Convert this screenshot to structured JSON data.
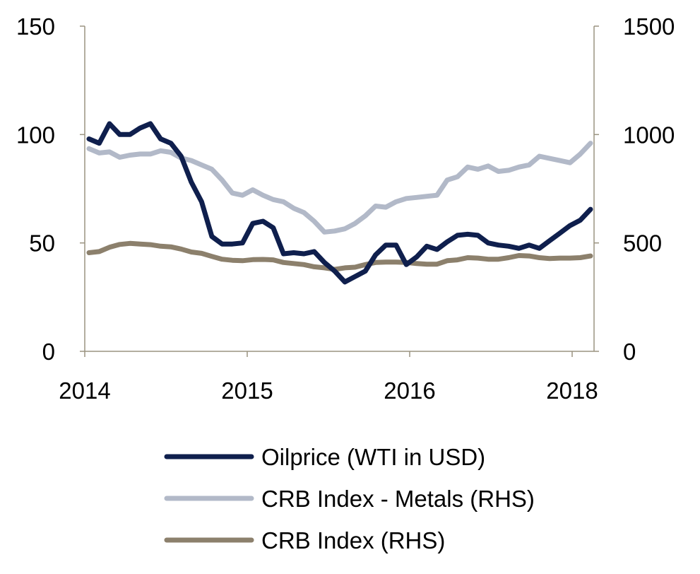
{
  "chart_data": {
    "type": "line",
    "title": "",
    "xlabel": "",
    "ylabel": "",
    "x_ticks": [
      "2014",
      "2015",
      "2016",
      "2018"
    ],
    "y_left": {
      "ticks": [
        "0",
        "50",
        "100",
        "150"
      ],
      "range": [
        0,
        150
      ]
    },
    "y_right": {
      "ticks": [
        "0",
        "500",
        "1000",
        "1500"
      ],
      "range": [
        0,
        1500
      ]
    },
    "grid": false,
    "legend": "bottom",
    "series": [
      {
        "name": "Oilprice (WTI in USD)",
        "axis": "left",
        "color": "#0f1f4d",
        "values": [
          98,
          96,
          105,
          100,
          100,
          103,
          105,
          98,
          96,
          90,
          78,
          69,
          53,
          49.5,
          49.5,
          50,
          59,
          60,
          57,
          45,
          45.5,
          45,
          46,
          41,
          37,
          32,
          34.5,
          37,
          44.5,
          49,
          49,
          40,
          43.5,
          48.5,
          47,
          50.5,
          53.5,
          54,
          53.5,
          50,
          49,
          48.5,
          47.5,
          49,
          47.5,
          51,
          54.5,
          58,
          60.5,
          65.5
        ]
      },
      {
        "name": "CRB Index - Metals (RHS)",
        "axis": "right",
        "color": "#b2b9c8",
        "values": [
          935,
          915,
          920,
          895,
          905,
          910,
          910,
          925,
          918,
          892,
          880,
          860,
          840,
          790,
          730,
          720,
          745,
          720,
          700,
          690,
          660,
          640,
          600,
          550,
          555,
          565,
          590,
          625,
          670,
          665,
          690,
          705,
          710,
          715,
          720,
          790,
          805,
          850,
          840,
          855,
          830,
          835,
          850,
          860,
          900,
          890,
          880,
          870,
          910,
          960
        ]
      },
      {
        "name": "CRB Index (RHS)",
        "axis": "right",
        "color": "#8c806c",
        "values": [
          455,
          460,
          480,
          493,
          498,
          495,
          492,
          485,
          482,
          472,
          458,
          452,
          438,
          425,
          420,
          418,
          423,
          424,
          422,
          410,
          405,
          400,
          390,
          385,
          378,
          385,
          388,
          400,
          410,
          412,
          412,
          410,
          405,
          402,
          402,
          418,
          422,
          432,
          430,
          425,
          425,
          432,
          442,
          440,
          432,
          428,
          430,
          430,
          432,
          440
        ]
      }
    ]
  }
}
